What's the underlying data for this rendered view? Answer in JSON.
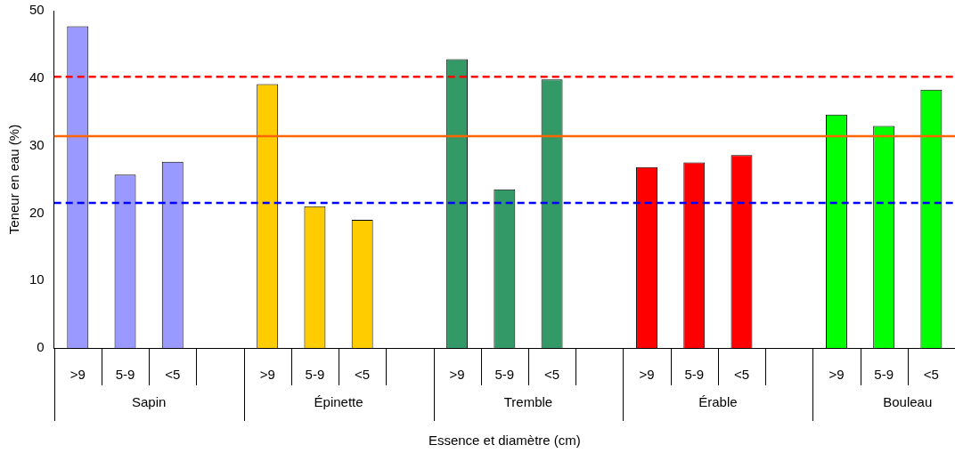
{
  "chart_data": {
    "type": "bar",
    "xlabel": "Essence et diamètre (cm)",
    "ylabel": "Teneur en eau (%)",
    "categories": [
      ">9",
      "5-9",
      "<5",
      null,
      ">9",
      "5-9",
      "<5",
      null,
      ">9",
      "5-9",
      "<5",
      null,
      ">9",
      "5-9",
      "<5",
      null,
      ">9",
      "5-9",
      "<5"
    ],
    "values": [
      47.7,
      25.7,
      27.6,
      null,
      39.1,
      21.0,
      19.0,
      null,
      42.8,
      23.5,
      39.8,
      null,
      26.8,
      27.5,
      28.6,
      null,
      34.6,
      32.9,
      38.3
    ],
    "colors": [
      "#9999ff",
      "#9999ff",
      "#9999ff",
      "#ffffff",
      "#ffcc00",
      "#ffcc00",
      "#ffcc00",
      "#ffffff",
      "#339966",
      "#339966",
      "#339966",
      "#ffffff",
      "#ff0000",
      "#ff0000",
      "#ff0000",
      "#ffffff",
      "#00ff00",
      "#00ff00",
      "#00ff00"
    ],
    "ylim": [
      0,
      50
    ],
    "yticks": [
      0,
      10,
      20,
      30,
      40,
      50
    ],
    "ref_lines": [
      {
        "axis": "y",
        "value": 40.2,
        "color": "#ff0000",
        "line_style": "dashed"
      },
      {
        "axis": "y",
        "value": 31.4,
        "color": "#ff6600",
        "line_style": "solid"
      },
      {
        "axis": "y",
        "value": 21.5,
        "color": "#0000ff",
        "line_style": "dashed"
      }
    ],
    "annotations": [
      "Sapin",
      "Épinette",
      "Tremble",
      "Érable",
      "Bouleau"
    ]
  }
}
